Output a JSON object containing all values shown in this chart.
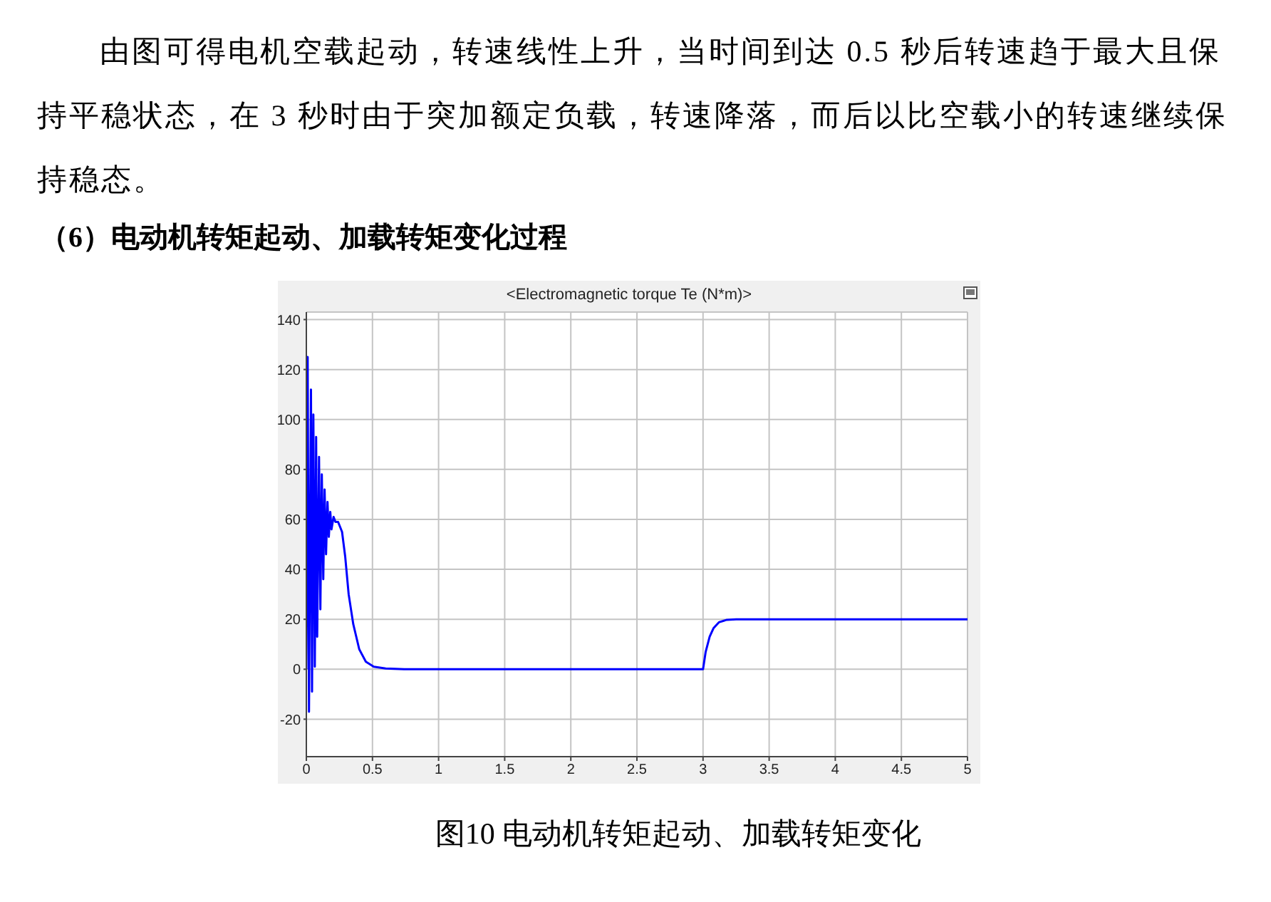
{
  "chart_data": {
    "type": "line",
    "title": "<Electromagnetic torque Te (N*m)>",
    "annotations": [
      "由图可得电机空载起动，转速线性上升，当时间到达 0.5 秒后转速趋于最大且保持平稳状态，在 3 秒时由于突加额定负载，转速降落，而后以比空载小的转速继续保持稳态。",
      "（6）电动机转矩起动、加载转矩变化过程",
      "图10  电动机转矩起动、加载转矩变化"
    ],
    "x": [
      0,
      0.01,
      0.02,
      0.035,
      0.043,
      0.053,
      0.064,
      0.074,
      0.082,
      0.096,
      0.106,
      0.117,
      0.128,
      0.138,
      0.149,
      0.16,
      0.17,
      0.181,
      0.19,
      0.206,
      0.22,
      0.24,
      0.27,
      0.294,
      0.32,
      0.355,
      0.4,
      0.45,
      0.51,
      0.6,
      0.74,
      1,
      2,
      3,
      3.02,
      3.05,
      3.08,
      3.12,
      3.18,
      3.25,
      3.3,
      4,
      5
    ],
    "series": [
      {
        "color": "#0000ff",
        "values": [
          0,
          125,
          -17,
          112,
          -9,
          102,
          1,
          93,
          13,
          85,
          24,
          78,
          36,
          72,
          46,
          67,
          53,
          63,
          56,
          61,
          59,
          59,
          55,
          45,
          30,
          18,
          8,
          3,
          1,
          0.3,
          0,
          0,
          0,
          0,
          7,
          13,
          16.5,
          18.8,
          19.8,
          20,
          20,
          20,
          20
        ]
      }
    ],
    "xlim": [
      0,
      5
    ],
    "xticks": [
      0,
      0.5,
      1,
      1.5,
      2,
      2.5,
      3,
      3.5,
      4,
      4.5,
      5
    ],
    "ylim": [
      -35,
      143
    ],
    "yticks": [
      -20,
      0,
      20,
      40,
      60,
      80,
      100,
      120,
      140
    ],
    "grid": true
  }
}
